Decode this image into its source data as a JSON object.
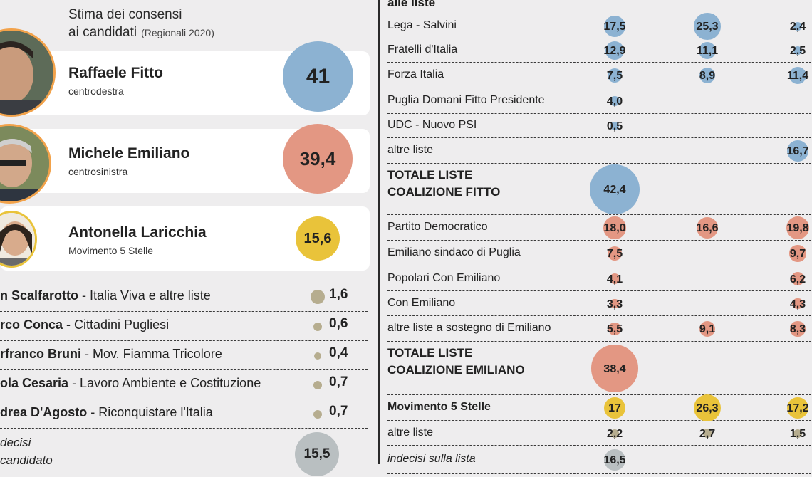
{
  "header": {
    "title_line1": "Stima dei consensi",
    "title_line2": "ai candidati",
    "subtitle": "(Regionali 2020)"
  },
  "colors": {
    "centrodestra": "#8cb2d2",
    "centrosinistra": "#e39783",
    "m5s": "#e9c33a",
    "undecided": "#b9bfc1",
    "minor": "#b6ad8f"
  },
  "candidates": [
    {
      "name": "Raffaele Fitto",
      "coalition": "centrodestra",
      "value": "41",
      "numeric": 41,
      "color_key": "centrodestra",
      "photo": "candidate-photo"
    },
    {
      "name": "Michele Emiliano",
      "coalition": "centrosinistra",
      "value": "39,4",
      "numeric": 39.4,
      "color_key": "centrosinistra",
      "photo": "candidate-photo"
    },
    {
      "name": "Antonella Laricchia",
      "coalition": "Movimento 5 Stelle",
      "value": "15,6",
      "numeric": 15.6,
      "color_key": "m5s",
      "photo": "candidate-photo"
    }
  ],
  "minor_candidates": [
    {
      "name": "n Scalfarotto",
      "list": " - Italia Viva e altre liste",
      "value": "1,6",
      "numeric": 1.6
    },
    {
      "name": "rco Conca",
      "list": " - Cittadini Pugliesi",
      "value": "0,6",
      "numeric": 0.6
    },
    {
      "name": "rfranco Bruni",
      "list": " - Mov. Fiamma Tricolore",
      "value": "0,4",
      "numeric": 0.4
    },
    {
      "name": "ola Cesaria",
      "list": " - Lavoro Ambiente e Costituzione",
      "value": "0,7",
      "numeric": 0.7
    },
    {
      "name": "drea D'Agosto",
      "list": " - Riconquistare l'Italia",
      "value": "0,7",
      "numeric": 0.7
    }
  ],
  "undecided_candidate": {
    "line1": "decisi",
    "line2": "candidato",
    "value": "15,5",
    "numeric": 15.5
  },
  "lists_header": "alle liste",
  "chart_data": {
    "type": "table",
    "title": "Stima dei consensi ai candidati (Regionali 2020)",
    "candidates": [
      {
        "name": "Raffaele Fitto",
        "coalition": "centrodestra",
        "value": 41
      },
      {
        "name": "Michele Emiliano",
        "coalition": "centrosinistra",
        "value": 39.4
      },
      {
        "name": "Antonella Laricchia",
        "coalition": "Movimento 5 Stelle",
        "value": 15.6
      },
      {
        "name": "Scalfarotto",
        "list": "Italia Viva e altre liste",
        "value": 1.6
      },
      {
        "name": "Conca",
        "list": "Cittadini Pugliesi",
        "value": 0.6
      },
      {
        "name": "Bruni",
        "list": "Mov. Fiamma Tricolore",
        "value": 0.4
      },
      {
        "name": "Cesaria",
        "list": "Lavoro Ambiente e Costituzione",
        "value": 0.7
      },
      {
        "name": "D'Agosto",
        "list": "Riconquistare l'Italia",
        "value": 0.7
      },
      {
        "name": "indecisi sul candidato",
        "value": 15.5
      }
    ],
    "lists": [
      {
        "label": "Lega - Salvini",
        "style": "normal",
        "color_key": "centrodestra",
        "values": [
          "17,5",
          "25,3",
          "2,4"
        ],
        "numeric": [
          17.5,
          25.3,
          2.4
        ]
      },
      {
        "label": "Fratelli d'Italia",
        "style": "normal",
        "color_key": "centrodestra",
        "values": [
          "12,9",
          "11,1",
          "2,5"
        ],
        "numeric": [
          12.9,
          11.1,
          2.5
        ]
      },
      {
        "label": "Forza Italia",
        "style": "normal",
        "color_key": "centrodestra",
        "values": [
          "7,5",
          "8,9",
          "11,4"
        ],
        "numeric": [
          7.5,
          8.9,
          11.4
        ]
      },
      {
        "label": "Puglia Domani Fitto Presidente",
        "style": "normal",
        "color_key": "centrodestra",
        "values": [
          "4,0",
          "",
          ""
        ],
        "numeric": [
          4.0,
          null,
          null
        ]
      },
      {
        "label": "UDC - Nuovo PSI",
        "style": "normal",
        "color_key": "centrodestra",
        "values": [
          "0,5",
          "",
          ""
        ],
        "numeric": [
          0.5,
          null,
          null
        ]
      },
      {
        "label": "altre liste",
        "style": "normal",
        "color_key": "centrodestra",
        "values": [
          "",
          "",
          "16,7"
        ],
        "numeric": [
          null,
          null,
          16.7
        ]
      },
      {
        "label": "TOTALE LISTE COALIZIONE FITTO",
        "style": "total",
        "color_key": "centrodestra",
        "values": [
          "42,4",
          "",
          ""
        ],
        "numeric": [
          42.4,
          null,
          null
        ]
      },
      {
        "label": "Partito Democratico",
        "style": "normal",
        "color_key": "centrosinistra",
        "values": [
          "18,0",
          "16,6",
          "19,8"
        ],
        "numeric": [
          18.0,
          16.6,
          19.8
        ]
      },
      {
        "label": "Emiliano sindaco di Puglia",
        "style": "normal",
        "color_key": "centrosinistra",
        "values": [
          "7,5",
          "",
          "9,7"
        ],
        "numeric": [
          7.5,
          null,
          9.7
        ]
      },
      {
        "label": "Popolari Con Emiliano",
        "style": "normal",
        "color_key": "centrosinistra",
        "values": [
          "4,1",
          "",
          "6,2"
        ],
        "numeric": [
          4.1,
          null,
          6.2
        ]
      },
      {
        "label": "Con Emiliano",
        "style": "normal",
        "color_key": "centrosinistra",
        "values": [
          "3,3",
          "",
          "4,3"
        ],
        "numeric": [
          3.3,
          null,
          4.3
        ]
      },
      {
        "label": "altre liste a sostegno di Emiliano",
        "style": "normal",
        "color_key": "centrosinistra",
        "values": [
          "5,5",
          "9,1",
          "8,3"
        ],
        "numeric": [
          5.5,
          9.1,
          8.3
        ]
      },
      {
        "label": "TOTALE LISTE COALIZIONE EMILIANO",
        "style": "total",
        "color_key": "centrosinistra",
        "values": [
          "38,4",
          "",
          ""
        ],
        "numeric": [
          38.4,
          null,
          null
        ]
      },
      {
        "label": "Movimento 5 Stelle",
        "style": "bold",
        "color_key": "m5s",
        "values": [
          "17",
          "26,3",
          "17,2"
        ],
        "numeric": [
          17,
          26.3,
          17.2
        ]
      },
      {
        "label": "altre liste",
        "style": "normal",
        "color_key": "minor",
        "values": [
          "2,2",
          "2,7",
          "1,5"
        ],
        "numeric": [
          2.2,
          2.7,
          1.5
        ]
      },
      {
        "label": "indecisi sulla lista",
        "style": "italic",
        "color_key": "undecided",
        "values": [
          "16,5",
          "",
          ""
        ],
        "numeric": [
          16.5,
          null,
          null
        ]
      }
    ]
  }
}
